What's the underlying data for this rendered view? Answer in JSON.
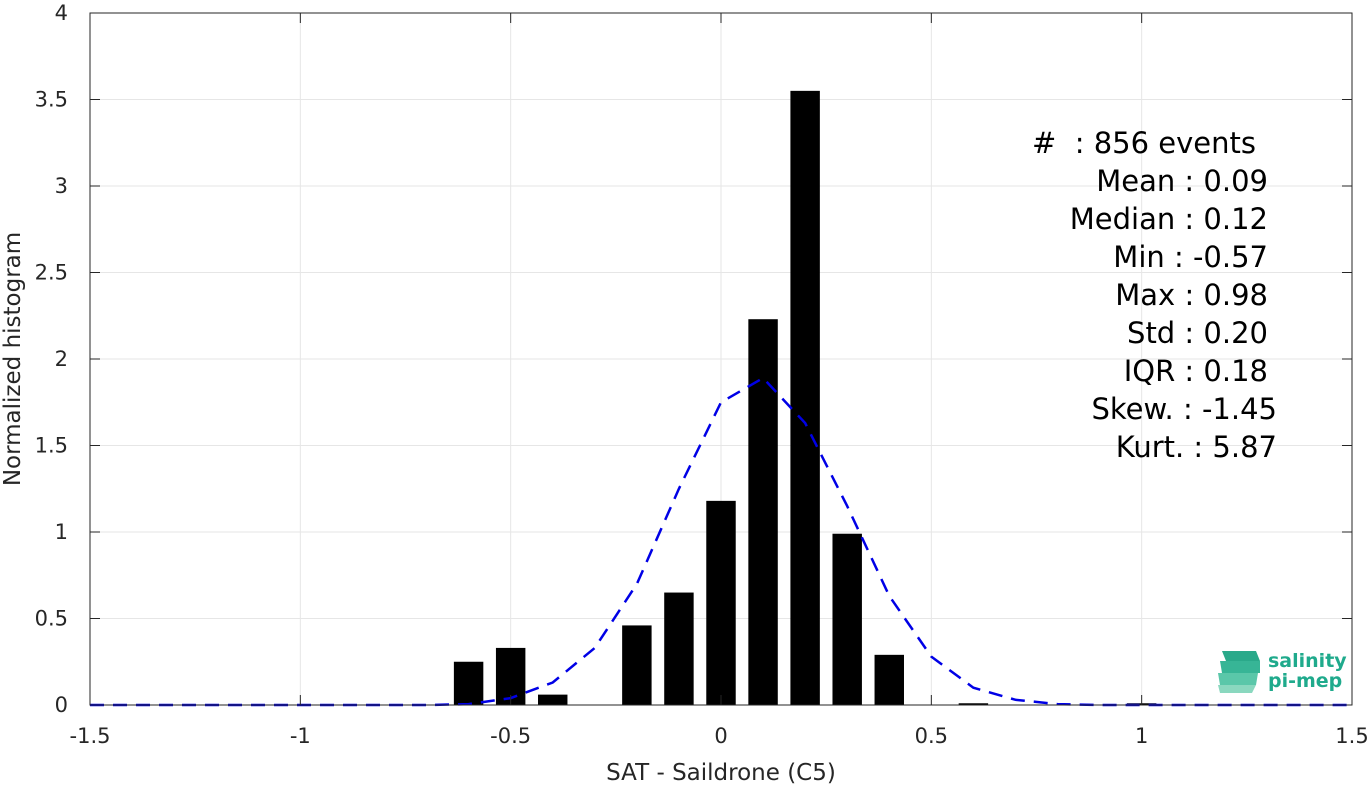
{
  "chart_data": {
    "type": "bar",
    "xlabel": "SAT - Saildrone (C5)",
    "ylabel": "Normalized histogram",
    "xlim": [
      -1.5,
      1.5
    ],
    "ylim": [
      0,
      4
    ],
    "xticks": [
      "-1.5",
      "-1",
      "-0.5",
      "0",
      "0.5",
      "1",
      "1.5"
    ],
    "xtick_values": [
      -1.5,
      -1,
      -0.5,
      0,
      0.5,
      1,
      1.5
    ],
    "yticks": [
      "0",
      "0.5",
      "1",
      "1.5",
      "2",
      "2.5",
      "3",
      "3.5",
      "4"
    ],
    "ytick_values": [
      0,
      0.5,
      1,
      1.5,
      2,
      2.5,
      3,
      3.5,
      4
    ],
    "bar_width": 0.07,
    "bars": [
      {
        "x": -0.6,
        "y": 0.25
      },
      {
        "x": -0.5,
        "y": 0.33
      },
      {
        "x": -0.4,
        "y": 0.06
      },
      {
        "x": -0.2,
        "y": 0.46
      },
      {
        "x": -0.1,
        "y": 0.65
      },
      {
        "x": 0.0,
        "y": 1.18
      },
      {
        "x": 0.1,
        "y": 2.23
      },
      {
        "x": 0.2,
        "y": 3.55
      },
      {
        "x": 0.3,
        "y": 0.99
      },
      {
        "x": 0.4,
        "y": 0.29
      },
      {
        "x": 0.6,
        "y": 0.01
      },
      {
        "x": 1.0,
        "y": 0.01
      }
    ],
    "fit_curve": {
      "style": "dashed",
      "color": "#0000e6",
      "x": [
        -1.5,
        -1.4,
        -1.3,
        -1.2,
        -1.1,
        -1.0,
        -0.9,
        -0.8,
        -0.7,
        -0.6,
        -0.5,
        -0.4,
        -0.3,
        -0.2,
        -0.1,
        0.0,
        0.1,
        0.2,
        0.3,
        0.4,
        0.5,
        0.6,
        0.7,
        0.8,
        0.9,
        1.0,
        1.1,
        1.2,
        1.3,
        1.4,
        1.5
      ],
      "y": [
        0,
        0,
        0,
        0,
        0,
        0,
        0,
        0,
        0,
        0.005,
        0.04,
        0.13,
        0.33,
        0.7,
        1.25,
        1.75,
        1.89,
        1.63,
        1.15,
        0.63,
        0.28,
        0.1,
        0.03,
        0.005,
        0,
        0,
        0,
        0,
        0,
        0,
        0
      ]
    },
    "grid": true,
    "bar_color": "#000000"
  },
  "stats": [
    "#  : 856 events",
    "Mean : 0.09",
    "Median : 0.12",
    "Min : -0.57",
    "Max : 0.98",
    "Std : 0.20",
    "IQR : 0.18",
    "Skew. : -1.45",
    "Kurt. : 5.87"
  ],
  "logo": {
    "line1": "salinity",
    "line2": "pi-mep",
    "color": "#1faa8c"
  }
}
